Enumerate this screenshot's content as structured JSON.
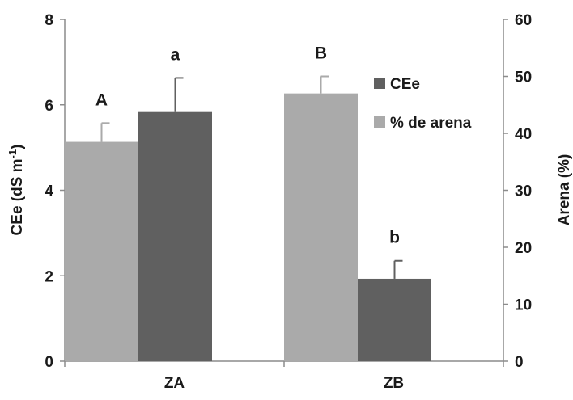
{
  "chart_data": {
    "type": "bar",
    "categories": [
      "ZA",
      "ZB"
    ],
    "series": [
      {
        "name": "% de arena",
        "axis": "right",
        "color": "#aaaaaa",
        "values": [
          38.5,
          47.0
        ],
        "errors": [
          3.3,
          3.0
        ],
        "letters": [
          "A",
          "B"
        ]
      },
      {
        "name": "CEe",
        "axis": "left",
        "color": "#606060",
        "values": [
          5.85,
          1.93
        ],
        "errors": [
          0.78,
          0.42
        ],
        "letters": [
          "a",
          "b"
        ]
      }
    ],
    "legend_order": [
      "CEe",
      "% de arena"
    ],
    "legend_position": "top-right",
    "ylabel_left_main": "CEe (dS m",
    "ylabel_left_sup": "-1",
    "ylabel_left_close": ")",
    "ylabel_right": "Arena (%)",
    "ylim_left": [
      0,
      8
    ],
    "yticks_left": [
      "0",
      "2",
      "4",
      "6",
      "8"
    ],
    "ylim_right": [
      0,
      60
    ],
    "yticks_right": [
      "0",
      "10",
      "20",
      "30",
      "40",
      "50",
      "60"
    ],
    "grid": false
  }
}
